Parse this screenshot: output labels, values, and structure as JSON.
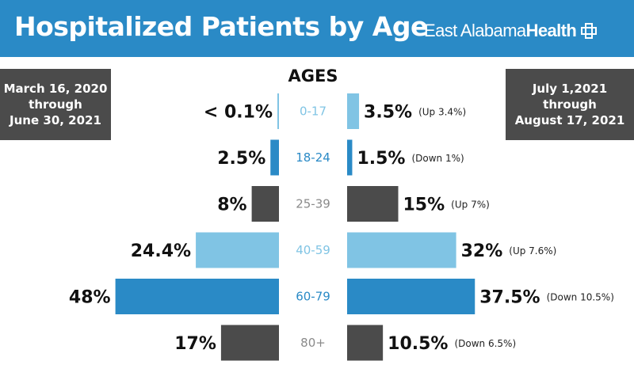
{
  "header": {
    "title": "Hospitalized Patients by Age",
    "brand_regular": "East Alabama",
    "brand_bold": "Health",
    "brand_icon": "medical-cross-icon",
    "background": "#2a8ac6"
  },
  "periods": {
    "left": [
      "March 16, 2020",
      "through",
      "June 30, 2021"
    ],
    "right": [
      "July 1,2021",
      "through",
      "August 17, 2021"
    ]
  },
  "colors": {
    "light_blue": "#80c4e4",
    "mid_blue": "#2a8ac6",
    "dark_gray": "#4b4b4b",
    "age_gray": "#8a8a8a"
  },
  "chart_data": {
    "type": "bar",
    "title": "AGES",
    "orientation": "horizontal-mirrored",
    "series": [
      {
        "name": "March 16, 2020 through June 30, 2021",
        "side": "left"
      },
      {
        "name": "July 1,2021 through August 17, 2021",
        "side": "right"
      }
    ],
    "rows": [
      {
        "age": "0-17",
        "left_value": 0.1,
        "left_label": "< 0.1%",
        "right_value": 3.5,
        "right_label": "3.5%",
        "change": "(Up 3.4%)",
        "color": "#80c4e4"
      },
      {
        "age": "18-24",
        "left_value": 2.5,
        "left_label": "2.5%",
        "right_value": 1.5,
        "right_label": "1.5%",
        "change": "(Down 1%)",
        "color": "#2a8ac6"
      },
      {
        "age": "25-39",
        "left_value": 8,
        "left_label": "8%",
        "right_value": 15,
        "right_label": "15%",
        "change": "(Up 7%)",
        "color": "#4b4b4b"
      },
      {
        "age": "40-59",
        "left_value": 24.4,
        "left_label": "24.4%",
        "right_value": 32,
        "right_label": "32%",
        "change": "(Up 7.6%)",
        "color": "#80c4e4"
      },
      {
        "age": "60-79",
        "left_value": 48,
        "left_label": "48%",
        "right_value": 37.5,
        "right_label": "37.5%",
        "change": "(Down 10.5%)",
        "color": "#2a8ac6"
      },
      {
        "age": "80+",
        "left_value": 17,
        "left_label": "17%",
        "right_value": 10.5,
        "right_label": "10.5%",
        "change": "(Down 6.5%)",
        "color": "#4b4b4b"
      }
    ]
  }
}
